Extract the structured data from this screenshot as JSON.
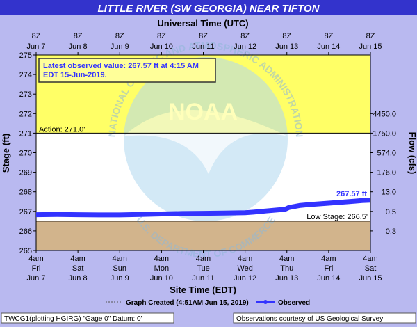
{
  "chart_data": {
    "type": "line",
    "title": "LITTLE RIVER (SW GEORGIA) NEAR TIFTON",
    "top_axis_title": "Universal Time (UTC)",
    "xlabel": "Site Time (EDT)",
    "ylabel": "Stage (ft)",
    "y2label": "Flow (cfs)",
    "ylim": [
      265,
      275
    ],
    "y_ticks": [
      265,
      266,
      267,
      268,
      269,
      270,
      271,
      272,
      273,
      274,
      275
    ],
    "y2_ticks": [
      {
        "stage": 266,
        "label": "0.3"
      },
      {
        "stage": 267,
        "label": "0.5"
      },
      {
        "stage": 268,
        "label": "13.0"
      },
      {
        "stage": 269,
        "label": "176.0"
      },
      {
        "stage": 270,
        "label": "574.0"
      },
      {
        "stage": 271,
        "label": "1750.0"
      },
      {
        "stage": 272,
        "label": "4450.0"
      }
    ],
    "x_range_days": [
      0,
      8
    ],
    "top_ticks": [
      {
        "day": 0,
        "line1": "8Z",
        "line2": "Jun 7"
      },
      {
        "day": 1,
        "line1": "8Z",
        "line2": "Jun 8"
      },
      {
        "day": 2,
        "line1": "8Z",
        "line2": "Jun 9"
      },
      {
        "day": 3,
        "line1": "8Z",
        "line2": "Jun 10"
      },
      {
        "day": 4,
        "line1": "8Z",
        "line2": "Jun 11"
      },
      {
        "day": 5,
        "line1": "8Z",
        "line2": "Jun 12"
      },
      {
        "day": 6,
        "line1": "8Z",
        "line2": "Jun 13"
      },
      {
        "day": 7,
        "line1": "8Z",
        "line2": "Jun 14"
      },
      {
        "day": 8,
        "line1": "8Z",
        "line2": "Jun 15"
      }
    ],
    "bottom_ticks": [
      {
        "day": 0,
        "line1": "4am",
        "line2": "Fri",
        "line3": "Jun 7"
      },
      {
        "day": 1,
        "line1": "4am",
        "line2": "Sat",
        "line3": "Jun 8"
      },
      {
        "day": 2,
        "line1": "4am",
        "line2": "Sun",
        "line3": "Jun 9"
      },
      {
        "day": 3,
        "line1": "4am",
        "line2": "Mon",
        "line3": "Jun 10"
      },
      {
        "day": 4,
        "line1": "4am",
        "line2": "Tue",
        "line3": "Jun 11"
      },
      {
        "day": 5,
        "line1": "4am",
        "line2": "Wed",
        "line3": "Jun 12"
      },
      {
        "day": 6,
        "line1": "4am",
        "line2": "Thu",
        "line3": "Jun 13"
      },
      {
        "day": 7,
        "line1": "4am",
        "line2": "Fri",
        "line3": "Jun 14"
      },
      {
        "day": 8,
        "line1": "4am",
        "line2": "Sat",
        "line3": "Jun 15"
      }
    ],
    "flood_zones": [
      {
        "from": 271.0,
        "to": 275.0,
        "color": "#ffff66"
      },
      {
        "from": 266.5,
        "to": 271.0,
        "color": "#ffffff"
      },
      {
        "from": 265.0,
        "to": 266.5,
        "color": "#d2b48c"
      }
    ],
    "thresholds": [
      {
        "label": "Action: 271.0'",
        "value": 271.0
      },
      {
        "label": "Low Stage: 266.5'",
        "value": 266.5
      }
    ],
    "series": [
      {
        "name": "Observed",
        "color": "#3333ff",
        "points": [
          [
            0.0,
            266.83
          ],
          [
            0.5,
            266.84
          ],
          [
            1.0,
            266.83
          ],
          [
            1.5,
            266.82
          ],
          [
            2.0,
            266.82
          ],
          [
            2.5,
            266.84
          ],
          [
            3.0,
            266.87
          ],
          [
            3.5,
            266.89
          ],
          [
            4.0,
            266.9
          ],
          [
            4.5,
            266.91
          ],
          [
            5.0,
            266.93
          ],
          [
            5.2,
            266.96
          ],
          [
            5.5,
            267.02
          ],
          [
            5.8,
            267.08
          ],
          [
            5.95,
            267.1
          ],
          [
            6.05,
            267.2
          ],
          [
            6.3,
            267.3
          ],
          [
            6.6,
            267.36
          ],
          [
            7.0,
            267.42
          ],
          [
            7.5,
            267.5
          ],
          [
            7.8,
            267.55
          ],
          [
            8.0,
            267.57
          ]
        ]
      }
    ],
    "latest_value_label": "267.57 ft",
    "latest_box_line1": "Latest observed value: 267.57 ft at 4:15 AM",
    "latest_box_line2": "EDT 15-Jun-2019.",
    "watermark": {
      "center": "NOAA",
      "arc_top": "NATIONAL OCEANIC AND ATMOSPHERIC ADMINISTRATION",
      "arc_bottom": "U.S. DEPARTMENT OF COMMERCE"
    },
    "legend": {
      "created": "Graph Created (4:51AM Jun 15, 2019)",
      "observed": "Observed"
    },
    "footer_left": "TWCG1(plotting HGIRG) \"Gage 0\" Datum: 0'",
    "footer_right": "Observations courtesy of US Geological Survey"
  }
}
